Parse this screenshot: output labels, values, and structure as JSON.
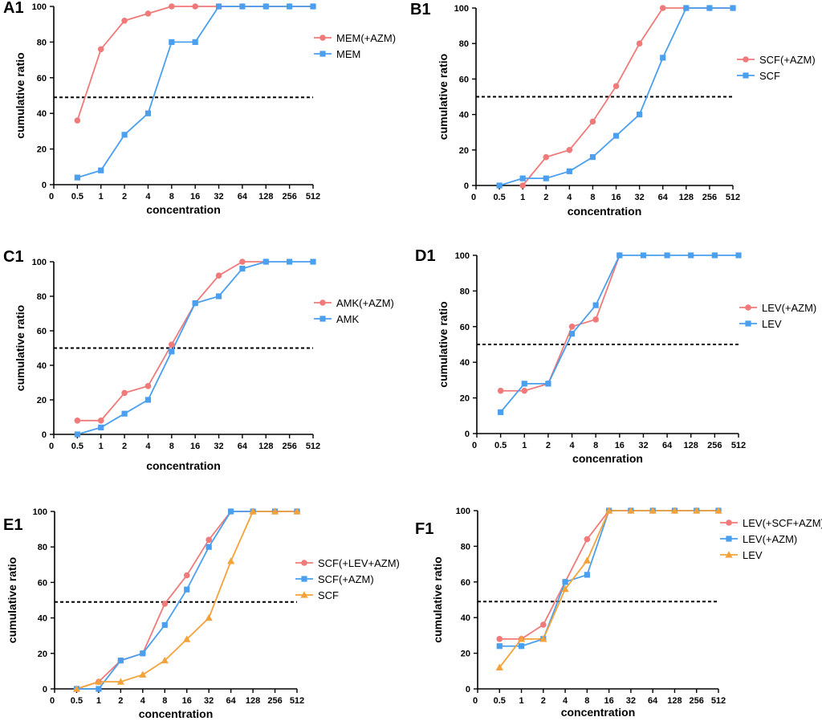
{
  "colors": {
    "pink": "#F07A7A",
    "blue": "#4A9FEF",
    "orange": "#F4A33A",
    "axis": "#000000",
    "reference": "#000000"
  },
  "chart_data": [
    {
      "id": "A1",
      "type": "line",
      "panel_label": "A1",
      "xlabel": "concentration",
      "ylabel": "cumulative ratio",
      "categories": [
        "0",
        "0.5",
        "1",
        "2",
        "4",
        "8",
        "16",
        "32",
        "64",
        "128",
        "256",
        "512"
      ],
      "yticks": [
        "0",
        "20",
        "40",
        "60",
        "80",
        "100"
      ],
      "ylim": [
        0,
        100
      ],
      "reference_line": 49,
      "series": [
        {
          "name": "MEM(+AZM)",
          "color": "#F07A7A",
          "marker": "circle",
          "values": [
            null,
            36,
            76,
            92,
            96,
            100,
            100,
            100,
            100,
            100,
            100,
            100
          ]
        },
        {
          "name": "MEM",
          "color": "#4A9FEF",
          "marker": "square",
          "values": [
            null,
            4,
            8,
            28,
            40,
            80,
            80,
            100,
            100,
            100,
            100,
            100
          ]
        }
      ]
    },
    {
      "id": "B1",
      "type": "line",
      "panel_label": "B1",
      "xlabel": "concentration",
      "ylabel": "cumulative ratio",
      "categories": [
        "0",
        "0.5",
        "1",
        "2",
        "4",
        "8",
        "16",
        "32",
        "64",
        "128",
        "256",
        "512"
      ],
      "yticks": [
        "0",
        "20",
        "40",
        "60",
        "80",
        "100"
      ],
      "ylim": [
        0,
        100
      ],
      "reference_line": 50,
      "series": [
        {
          "name": "SCF(+AZM)",
          "color": "#F07A7A",
          "marker": "circle",
          "values": [
            null,
            null,
            0,
            16,
            20,
            36,
            56,
            80,
            100,
            100,
            100,
            100
          ]
        },
        {
          "name": "SCF",
          "color": "#4A9FEF",
          "marker": "square",
          "values": [
            null,
            0,
            4,
            4,
            8,
            16,
            28,
            40,
            72,
            100,
            100,
            100
          ]
        }
      ]
    },
    {
      "id": "C1",
      "type": "line",
      "panel_label": "C1",
      "xlabel": "concentration",
      "ylabel": "cumulative ratio",
      "categories": [
        "0",
        "0.5",
        "1",
        "2",
        "4",
        "8",
        "16",
        "32",
        "64",
        "128",
        "256",
        "512"
      ],
      "yticks": [
        "0",
        "20",
        "40",
        "60",
        "80",
        "100"
      ],
      "ylim": [
        0,
        100
      ],
      "reference_line": 50,
      "series": [
        {
          "name": "AMK(+AZM)",
          "color": "#F07A7A",
          "marker": "circle",
          "values": [
            null,
            8,
            8,
            24,
            28,
            52,
            76,
            92,
            100,
            100,
            null,
            null
          ]
        },
        {
          "name": "AMK",
          "color": "#4A9FEF",
          "marker": "square",
          "values": [
            null,
            0,
            4,
            12,
            20,
            48,
            76,
            80,
            96,
            100,
            100,
            100
          ]
        }
      ]
    },
    {
      "id": "D1",
      "type": "line",
      "panel_label": "D1",
      "xlabel": "concenration",
      "ylabel": "cumulative ratio",
      "categories": [
        "0",
        "0.5",
        "1",
        "2",
        "4",
        "8",
        "16",
        "32",
        "64",
        "128",
        "256",
        "512"
      ],
      "yticks": [
        "0",
        "20",
        "40",
        "60",
        "80",
        "100"
      ],
      "ylim": [
        0,
        100
      ],
      "reference_line": 50,
      "series": [
        {
          "name": "LEV(+AZM)",
          "color": "#F07A7A",
          "marker": "circle",
          "values": [
            null,
            24,
            24,
            28,
            60,
            64,
            100,
            null,
            null,
            null,
            null,
            null
          ]
        },
        {
          "name": "LEV",
          "color": "#4A9FEF",
          "marker": "square",
          "values": [
            null,
            12,
            28,
            28,
            56,
            72,
            100,
            100,
            100,
            100,
            100,
            100
          ]
        }
      ]
    },
    {
      "id": "E1",
      "type": "line",
      "panel_label": "E1",
      "xlabel": "concentration",
      "ylabel": "cumulative ratio",
      "categories": [
        "0",
        "0.5",
        "1",
        "2",
        "4",
        "8",
        "16",
        "32",
        "64",
        "128",
        "256",
        "512"
      ],
      "yticks": [
        "0",
        "20",
        "40",
        "60",
        "80",
        "100"
      ],
      "ylim": [
        0,
        100
      ],
      "reference_line": 49,
      "series": [
        {
          "name": "SCF(+LEV+AZM)",
          "color": "#F07A7A",
          "marker": "circle",
          "values": [
            null,
            0,
            4,
            16,
            20,
            48,
            64,
            84,
            100,
            100,
            100,
            100
          ]
        },
        {
          "name": "SCF(+AZM)",
          "color": "#4A9FEF",
          "marker": "square",
          "values": [
            null,
            0,
            0,
            16,
            20,
            36,
            56,
            80,
            100,
            100,
            100,
            100
          ]
        },
        {
          "name": "SCF",
          "color": "#F4A33A",
          "marker": "triangle",
          "values": [
            null,
            0,
            4,
            4,
            8,
            16,
            28,
            40,
            72,
            100,
            100,
            100
          ]
        }
      ]
    },
    {
      "id": "F1",
      "type": "line",
      "panel_label": "F1",
      "xlabel": "concentration",
      "ylabel": "cumulative ratio",
      "categories": [
        "0",
        "0.5",
        "1",
        "2",
        "4",
        "8",
        "16",
        "32",
        "64",
        "128",
        "256",
        "512"
      ],
      "yticks": [
        "0",
        "20",
        "40",
        "60",
        "80",
        "100"
      ],
      "ylim": [
        0,
        100
      ],
      "reference_line": 49,
      "series": [
        {
          "name": "LEV(+SCF+AZM)",
          "color": "#F07A7A",
          "marker": "circle",
          "values": [
            null,
            28,
            28,
            36,
            60,
            84,
            100,
            100,
            100,
            100,
            100,
            100
          ]
        },
        {
          "name": "LEV(+AZM)",
          "color": "#4A9FEF",
          "marker": "square",
          "values": [
            null,
            24,
            24,
            28,
            60,
            64,
            100,
            100,
            100,
            100,
            100,
            100
          ]
        },
        {
          "name": "LEV",
          "color": "#F4A33A",
          "marker": "triangle",
          "values": [
            null,
            12,
            28,
            28,
            56,
            72,
            100,
            100,
            100,
            100,
            100,
            100
          ]
        }
      ]
    }
  ]
}
